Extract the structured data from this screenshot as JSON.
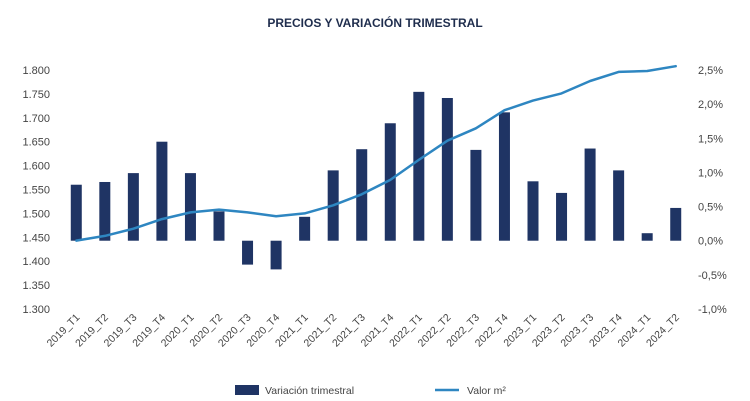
{
  "chart_data": {
    "type": "bar+line",
    "title": "PRECIOS Y VARIACIÓN TRIMESTRAL",
    "categories": [
      "2019_T1",
      "2019_T2",
      "2019_T3",
      "2019_T4",
      "2020_T1",
      "2020_T2",
      "2020_T3",
      "2020_T4",
      "2021_T1",
      "2021_T2",
      "2021_T3",
      "2021_T4",
      "2022_T1",
      "2022_T2",
      "2022_T3",
      "2022_T4",
      "2023_T1",
      "2023_T2",
      "2023_T3",
      "2023_T4",
      "2024_T1",
      "2024_T2"
    ],
    "series": [
      {
        "name": "Variación trimestral",
        "type": "bar",
        "axis": "right",
        "color": "#1f3464",
        "values": [
          0.82,
          0.86,
          0.99,
          1.45,
          0.99,
          0.43,
          -0.35,
          -0.42,
          0.35,
          1.03,
          1.34,
          1.72,
          2.18,
          2.09,
          1.33,
          1.88,
          0.87,
          0.7,
          1.35,
          1.03,
          0.11,
          0.48
        ]
      },
      {
        "name": "Valor m²",
        "type": "line",
        "axis": "left",
        "color": "#2e86c1",
        "values": [
          1443,
          1453,
          1468,
          1488,
          1502,
          1508,
          1502,
          1494,
          1500,
          1517,
          1540,
          1570,
          1612,
          1652,
          1678,
          1716,
          1736,
          1751,
          1777,
          1796,
          1798,
          1808
        ]
      }
    ],
    "y_left": {
      "min": 1300,
      "max": 1800,
      "ticks": [
        "1.300",
        "1.350",
        "1.400",
        "1.450",
        "1.500",
        "1.550",
        "1.600",
        "1.650",
        "1.700",
        "1.750",
        "1.800"
      ]
    },
    "y_right": {
      "min": -1.0,
      "max": 2.5,
      "ticks": [
        "-1,0%",
        "-0,5%",
        "0,0%",
        "0,5%",
        "1,0%",
        "1,5%",
        "2,0%",
        "2,5%"
      ]
    },
    "grid": false,
    "legend_position": "bottom"
  }
}
